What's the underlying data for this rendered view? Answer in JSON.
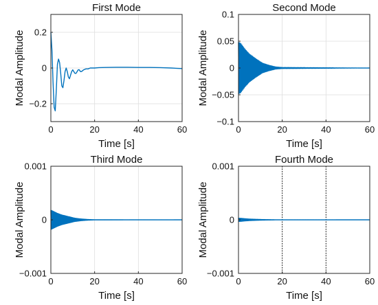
{
  "chart_data": [
    {
      "type": "line",
      "title": "First Mode",
      "xlabel": "Time [s]",
      "ylabel": "Modal Amplitude",
      "xlim": [
        0,
        60
      ],
      "ylim": [
        -0.3,
        0.3
      ],
      "xticks": [
        0,
        20,
        40,
        60
      ],
      "yticks": [
        -0.2,
        0,
        0.2
      ],
      "xtick_labels": [
        "0",
        "20",
        "40",
        "60"
      ],
      "ytick_labels": [
        "−0.2",
        "0",
        "0.2"
      ],
      "grid": true,
      "series": [
        {
          "color": "#0072BD",
          "x": [
            0,
            0.5,
            1.0,
            1.5,
            2.0,
            2.5,
            3.0,
            3.5,
            4.0,
            4.5,
            5.0,
            5.5,
            6.0,
            6.5,
            7.0,
            7.5,
            8.0,
            8.5,
            9.0,
            9.5,
            10.0,
            10.5,
            11.0,
            11.5,
            12.0,
            12.5,
            13.0,
            13.5,
            14.0,
            15.0,
            16.0,
            17.0,
            18.0,
            20.0,
            22.0,
            25.0,
            30.0,
            35.0,
            40.0,
            45.0,
            50.0,
            55.0,
            58.0,
            60.0
          ],
          "values": [
            0.2,
            0.1,
            -0.08,
            -0.22,
            -0.24,
            -0.12,
            0.02,
            0.05,
            0.03,
            -0.03,
            -0.1,
            -0.11,
            -0.07,
            -0.02,
            0.0,
            -0.02,
            -0.05,
            -0.06,
            -0.04,
            -0.02,
            -0.01,
            -0.02,
            -0.03,
            -0.03,
            -0.02,
            -0.01,
            -0.01,
            -0.02,
            -0.02,
            -0.01,
            -0.005,
            -0.005,
            0.0,
            0.0,
            0.002,
            0.003,
            0.004,
            0.004,
            0.003,
            0.003,
            0.002,
            0.0,
            -0.002,
            -0.003
          ]
        }
      ]
    },
    {
      "type": "line",
      "title": "Second Mode",
      "xlabel": "Time [s]",
      "ylabel": "Modal Amplitude",
      "xlim": [
        0,
        60
      ],
      "ylim": [
        -0.1,
        0.1
      ],
      "xticks": [
        0,
        20,
        40,
        60
      ],
      "yticks": [
        -0.1,
        -0.05,
        0,
        0.05,
        0.1
      ],
      "xtick_labels": [
        "0",
        "20",
        "40",
        "60"
      ],
      "ytick_labels": [
        "−0.1",
        "−0.05",
        "0",
        "0.05",
        "0.1"
      ],
      "grid": true,
      "series": [
        {
          "color": "#0072BD",
          "description_of_signal": "",
          "envelope_x": [
            0,
            1,
            3,
            5,
            8,
            11,
            14,
            17,
            20,
            60
          ],
          "envelope_values": [
            0.048,
            0.046,
            0.035,
            0.026,
            0.017,
            0.009,
            0.005,
            0.002,
            0.001,
            0.0
          ],
          "oscillation_period": 0.4
        }
      ]
    },
    {
      "type": "line",
      "title": "Third Mode",
      "xlabel": "Time [s]",
      "ylabel": "Modal Amplitude",
      "xlim": [
        0,
        60
      ],
      "ylim": [
        -0.001,
        0.001
      ],
      "xticks": [
        0,
        20,
        40,
        60
      ],
      "yticks": [
        -0.001,
        0,
        0.001
      ],
      "xtick_labels": [
        "0",
        "20",
        "40",
        "60"
      ],
      "ytick_labels": [
        "−0.001",
        "0",
        "0.001"
      ],
      "grid": true,
      "series": [
        {
          "color": "#0072BD",
          "envelope_x": [
            0,
            1,
            3,
            5,
            8,
            11,
            14,
            17,
            20,
            60
          ],
          "envelope_values": [
            0.00018,
            0.00016,
            0.00012,
            9e-05,
            6e-05,
            3e-05,
            1.5e-05,
            6e-06,
            2e-06,
            0.0
          ],
          "oscillation_period": 0.3
        }
      ]
    },
    {
      "type": "line",
      "title": "Fourth Mode",
      "xlabel": "Time [s]",
      "ylabel": "Modal Amplitude",
      "xlim": [
        0,
        60
      ],
      "ylim": [
        -0.001,
        0.001
      ],
      "xticks": [
        0,
        20,
        40,
        60
      ],
      "yticks": [
        -0.001,
        0,
        0.001
      ],
      "xtick_labels": [
        "0",
        "20",
        "40",
        "60"
      ],
      "ytick_labels": [
        "−0.001",
        "0",
        "0.001"
      ],
      "grid": true,
      "dotted_vlines": [
        20,
        40
      ],
      "series": [
        {
          "color": "#0072BD",
          "envelope_x": [
            0,
            1,
            3,
            5,
            8,
            11,
            14,
            17,
            20,
            60
          ],
          "envelope_values": [
            3e-05,
            2.8e-05,
            2e-05,
            1.4e-05,
            9e-06,
            5e-06,
            3e-06,
            1e-06,
            5e-07,
            0.0
          ],
          "oscillation_period": 0.25
        }
      ]
    }
  ]
}
